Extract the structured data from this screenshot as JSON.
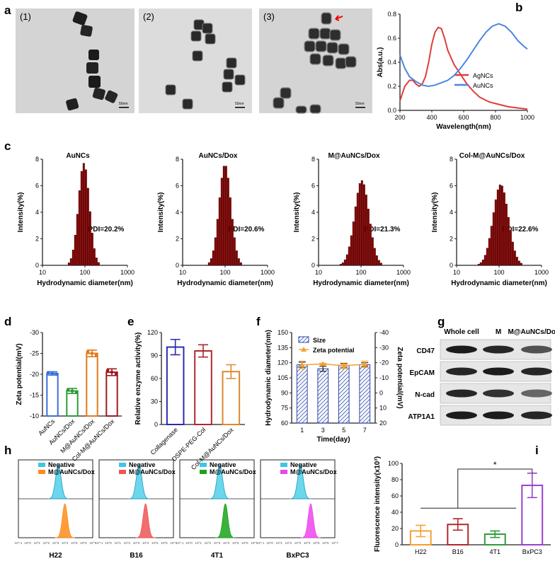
{
  "panel_letters": [
    "a",
    "b",
    "c",
    "d",
    "e",
    "f",
    "g",
    "h",
    "i"
  ],
  "tem": {
    "images": [
      {
        "label": "(1)",
        "scale": "50nm"
      },
      {
        "label": "(2)",
        "scale": "50nm"
      },
      {
        "label": "(3)",
        "scale": "50nm"
      }
    ]
  },
  "western_blot": {
    "columns": [
      "Whole cell",
      "M",
      "M@AuNCs/Dox"
    ],
    "rows": [
      "CD47",
      "EpCAM",
      "N-cad",
      "ATP1A1"
    ]
  },
  "chart_data": [
    {
      "id": "b",
      "type": "line",
      "xlabel": "Wavelength(nm)",
      "ylabel": "Abs(a.u.)",
      "xlim": [
        200,
        1000
      ],
      "ylim": [
        0,
        0.8
      ],
      "xticks": [
        200,
        400,
        600,
        800,
        1000
      ],
      "yticks": [
        0.0,
        0.2,
        0.4,
        0.6,
        0.8
      ],
      "series": [
        {
          "name": "AgNCs",
          "color": "#e03c3c",
          "x": [
            200,
            230,
            260,
            280,
            300,
            320,
            340,
            360,
            380,
            400,
            420,
            440,
            460,
            480,
            500,
            540,
            580,
            620,
            660,
            700,
            760,
            820,
            880,
            940,
            1000
          ],
          "y": [
            0.08,
            0.2,
            0.25,
            0.25,
            0.22,
            0.2,
            0.22,
            0.28,
            0.4,
            0.55,
            0.65,
            0.69,
            0.68,
            0.6,
            0.5,
            0.38,
            0.3,
            0.22,
            0.16,
            0.11,
            0.07,
            0.05,
            0.03,
            0.02,
            0.01
          ]
        },
        {
          "name": "AuNCs",
          "color": "#4a86e0",
          "x": [
            200,
            230,
            260,
            300,
            340,
            380,
            420,
            460,
            500,
            540,
            580,
            620,
            660,
            700,
            740,
            780,
            820,
            860,
            900,
            940,
            980,
            1000
          ],
          "y": [
            0.46,
            0.35,
            0.28,
            0.24,
            0.21,
            0.2,
            0.21,
            0.23,
            0.25,
            0.29,
            0.35,
            0.42,
            0.5,
            0.58,
            0.65,
            0.7,
            0.72,
            0.7,
            0.65,
            0.58,
            0.53,
            0.51
          ]
        }
      ]
    },
    {
      "id": "c",
      "type": "bar",
      "xlabel": "Hydrodynamic diameter(nm)",
      "ylabel": "Intensity(%)",
      "xscale": "log",
      "xlim": [
        10,
        1000
      ],
      "ylim": [
        0,
        8
      ],
      "xticks": [
        10,
        100,
        1000
      ],
      "yticks": [
        0,
        2,
        4,
        6,
        8
      ],
      "color": "#8b0000",
      "panels": [
        {
          "title": "AuNCs",
          "pdi": "PDI=20.2%",
          "center": 95,
          "sigma": 0.13,
          "peak": 7.7
        },
        {
          "title": "AuNCs/Dox",
          "pdi": "PDI=20.6%",
          "center": 100,
          "sigma": 0.14,
          "peak": 7.6
        },
        {
          "title": "M@AuNCs/Dox",
          "pdi": "PDI=21.3%",
          "center": 105,
          "sigma": 0.17,
          "peak": 6.4
        },
        {
          "title": "Col-M@AuNCs/Dox",
          "pdi": "PDI=22.6%",
          "center": 110,
          "sigma": 0.18,
          "peak": 6.1
        }
      ]
    },
    {
      "id": "d",
      "type": "bar",
      "ylabel": "Zeta potential(mV)",
      "ylim": [
        -10,
        -30
      ],
      "yticks": [
        -10,
        -15,
        -20,
        -25,
        -30
      ],
      "categories": [
        "AuNCs",
        "AuNCs/Dox",
        "M@AuNCs/Dox",
        "Col-M@AuNCs/Dox"
      ],
      "values": [
        -20.2,
        -16.0,
        -25.0,
        -20.5
      ],
      "errors": [
        0.4,
        0.6,
        0.8,
        0.8
      ],
      "colors": [
        "#3a6fd8",
        "#2e9b3a",
        "#e07b1a",
        "#9e1b20"
      ]
    },
    {
      "id": "e",
      "type": "bar",
      "ylabel": "Relative enzyme activity(%)",
      "ylim": [
        0,
        120
      ],
      "yticks": [
        0,
        30,
        60,
        90,
        120
      ],
      "categories": [
        "Collagenase",
        "DSPE-PEG-Col",
        "Col-M@AuNCs/Dox"
      ],
      "values": [
        101,
        96,
        69
      ],
      "errors": [
        10,
        8,
        9
      ],
      "colors": [
        "#2b2bb0",
        "#b0282e",
        "#d98a2e"
      ]
    },
    {
      "id": "f",
      "type": "bar",
      "xlabel": "Time(day)",
      "ylabel": "Hydrodynamic diameter(nm)",
      "y2label": "Zeta potential(mV)",
      "categories": [
        "1",
        "3",
        "5",
        "7"
      ],
      "ylim": [
        60,
        150
      ],
      "yticks": [
        60,
        75,
        90,
        105,
        120,
        135,
        150
      ],
      "y2lim": [
        20,
        -40
      ],
      "y2ticks": [
        20,
        10,
        0,
        -10,
        -20,
        -30,
        -40
      ],
      "series": [
        {
          "name": "Size",
          "values": [
            118,
            114,
            117,
            118
          ],
          "errors": [
            2.5,
            2.5,
            2,
            2
          ],
          "color": "#2d4aa8"
        },
        {
          "name": "Zeta potential",
          "values": [
            -18.5,
            -19.2,
            -18,
            -19
          ],
          "errors": [
            2.5,
            0.5,
            1.8,
            2
          ],
          "color": "#f5a030"
        }
      ]
    },
    {
      "id": "h",
      "type": "area",
      "xticks": [
        "10^-1",
        "10^0",
        "10^1",
        "10^2",
        "10^3",
        "10^4",
        "10^5",
        "10^6",
        "10^7"
      ],
      "neg_color": "#3ac8e6",
      "panels": [
        {
          "title": "H22",
          "negative": "Negative",
          "sample": "M@AuNCs/Dox",
          "neg_peak": 3.3,
          "pos_peak": 4.0,
          "color": "#ff8c1a"
        },
        {
          "title": "B16",
          "negative": "Negative",
          "sample": "M@AuNCs/Dox",
          "neg_peak": 3.3,
          "pos_peak": 4.0,
          "color": "#f05454"
        },
        {
          "title": "4T1",
          "negative": "Negative",
          "sample": "M@AuNCs/Dox",
          "neg_peak": 3.3,
          "pos_peak": 3.9,
          "color": "#1aa31a"
        },
        {
          "title": "BxPC3",
          "negative": "Negative",
          "sample": "M@AuNCs/Dox",
          "neg_peak": 3.3,
          "pos_peak": 4.4,
          "color": "#ee44ee"
        }
      ]
    },
    {
      "id": "i",
      "type": "bar",
      "ylabel": "Fluorescence intensity(x10³)",
      "ylim": [
        0,
        100
      ],
      "yticks": [
        0,
        20,
        40,
        60,
        80,
        100
      ],
      "categories": [
        "H22",
        "B16",
        "4T1",
        "BxPC3"
      ],
      "values": [
        17,
        25,
        13,
        73
      ],
      "errors": [
        7,
        7,
        4,
        15
      ],
      "colors": [
        "#f5a030",
        "#b0282e",
        "#2e9b3a",
        "#9b40cf"
      ],
      "annotation": "*"
    }
  ]
}
